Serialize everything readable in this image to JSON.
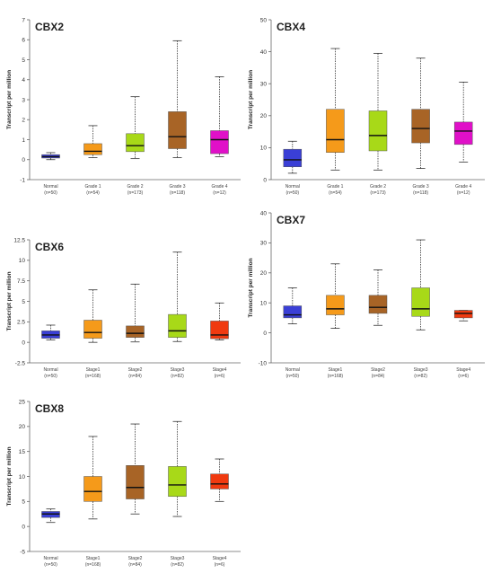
{
  "chart_data": [
    {
      "type": "box",
      "title": "CBX2",
      "ylabel": "Transcript per million",
      "ylim": [
        -1,
        7
      ],
      "yticks": [
        -1,
        0,
        1,
        2,
        3,
        4,
        5,
        6,
        7
      ],
      "categories": [
        {
          "name": "Normal",
          "n": "(n=50)",
          "color": "#3a3fd6",
          "min": 0.0,
          "q1": 0.08,
          "median": 0.15,
          "q3": 0.25,
          "max": 0.35
        },
        {
          "name": "Grade 1",
          "n": "(n=54)",
          "color": "#f59a1a",
          "min": 0.1,
          "q1": 0.25,
          "median": 0.42,
          "q3": 0.8,
          "max": 1.7
        },
        {
          "name": "Grade 2",
          "n": "(n=173)",
          "color": "#a8d918",
          "min": 0.05,
          "q1": 0.4,
          "median": 0.7,
          "q3": 1.3,
          "max": 3.15
        },
        {
          "name": "Grade 3",
          "n": "(n=118)",
          "color": "#a86426",
          "min": 0.1,
          "q1": 0.55,
          "median": 1.15,
          "q3": 2.4,
          "max": 5.95
        },
        {
          "name": "Grade 4",
          "n": "(n=12)",
          "color": "#e010c8",
          "min": 0.15,
          "q1": 0.3,
          "median": 1.0,
          "q3": 1.45,
          "max": 4.15
        }
      ]
    },
    {
      "type": "box",
      "title": "CBX4",
      "ylabel": "Transcript per million",
      "ylim": [
        0,
        50
      ],
      "yticks": [
        0,
        10,
        20,
        30,
        40,
        50
      ],
      "categories": [
        {
          "name": "Normal",
          "n": "(n=50)",
          "color": "#3a3fd6",
          "min": 2.0,
          "q1": 4.0,
          "median": 6.2,
          "q3": 9.5,
          "max": 12.0
        },
        {
          "name": "Grade 1",
          "n": "(n=54)",
          "color": "#f59a1a",
          "min": 3.0,
          "q1": 8.5,
          "median": 12.5,
          "q3": 22.0,
          "max": 41.0
        },
        {
          "name": "Grade 2",
          "n": "(n=173)",
          "color": "#a8d918",
          "min": 3.0,
          "q1": 9.0,
          "median": 13.8,
          "q3": 21.5,
          "max": 39.5
        },
        {
          "name": "Grade 3",
          "n": "(n=118)",
          "color": "#a86426",
          "min": 3.5,
          "q1": 11.5,
          "median": 16.0,
          "q3": 22.0,
          "max": 38.0
        },
        {
          "name": "Grade 4",
          "n": "(n=12)",
          "color": "#e010c8",
          "min": 5.5,
          "q1": 11.0,
          "median": 15.2,
          "q3": 18.0,
          "max": 30.5
        }
      ]
    },
    {
      "type": "box",
      "title": "CBX6",
      "ylabel": "Transcript per million",
      "ylim": [
        -2.5,
        12.5
      ],
      "yticks": [
        -2.5,
        0,
        2.5,
        5,
        7.5,
        10,
        12.5
      ],
      "categories": [
        {
          "name": "Normal",
          "n": "(n=50)",
          "color": "#3a3fd6",
          "min": 0.3,
          "q1": 0.5,
          "median": 0.9,
          "q3": 1.4,
          "max": 2.1
        },
        {
          "name": "Stage1",
          "n": "(n=168)",
          "color": "#f59a1a",
          "min": 0.0,
          "q1": 0.5,
          "median": 1.2,
          "q3": 2.7,
          "max": 6.4
        },
        {
          "name": "Stage2",
          "n": "(n=84)",
          "color": "#a86426",
          "min": 0.05,
          "q1": 0.6,
          "median": 1.1,
          "q3": 2.0,
          "max": 7.1
        },
        {
          "name": "Stage3",
          "n": "(n=82)",
          "color": "#a8d918",
          "min": 0.1,
          "q1": 0.6,
          "median": 1.4,
          "q3": 3.4,
          "max": 11.0
        },
        {
          "name": "Stage4",
          "n": "(n=6)",
          "color": "#f03a10",
          "min": 0.3,
          "q1": 0.45,
          "median": 0.9,
          "q3": 2.6,
          "max": 4.8
        }
      ]
    },
    {
      "type": "box",
      "title": "CBX7",
      "ylabel": "Transcript per million",
      "ylim": [
        -10,
        40
      ],
      "yticks": [
        -10,
        0,
        10,
        20,
        30,
        40
      ],
      "categories": [
        {
          "name": "Normal",
          "n": "(n=50)",
          "color": "#3a3fd6",
          "min": 3.0,
          "q1": 5.0,
          "median": 6.0,
          "q3": 9.0,
          "max": 15.0
        },
        {
          "name": "Stage1",
          "n": "(n=168)",
          "color": "#f59a1a",
          "min": 1.5,
          "q1": 6.0,
          "median": 8.0,
          "q3": 12.5,
          "max": 23.0
        },
        {
          "name": "Stage2",
          "n": "(n=84)",
          "color": "#a86426",
          "min": 2.5,
          "q1": 6.5,
          "median": 8.5,
          "q3": 12.5,
          "max": 21.0
        },
        {
          "name": "Stage3",
          "n": "(n=82)",
          "color": "#a8d918",
          "min": 1.0,
          "q1": 5.5,
          "median": 8.0,
          "q3": 15.0,
          "max": 31.0
        },
        {
          "name": "Stage4",
          "n": "(n=6)",
          "color": "#f03a10",
          "min": 4.0,
          "q1": 5.0,
          "median": 6.5,
          "q3": 7.5,
          "max": 7.5
        }
      ]
    },
    {
      "type": "box",
      "title": "CBX8",
      "ylabel": "Transcript per million",
      "ylim": [
        -5,
        25
      ],
      "yticks": [
        -5,
        0,
        5,
        10,
        15,
        20,
        25
      ],
      "categories": [
        {
          "name": "Normal",
          "n": "(n=50)",
          "color": "#3a3fd6",
          "min": 0.8,
          "q1": 1.8,
          "median": 2.5,
          "q3": 3.0,
          "max": 3.5
        },
        {
          "name": "Stage1",
          "n": "(n=168)",
          "color": "#f59a1a",
          "min": 1.5,
          "q1": 5.0,
          "median": 7.0,
          "q3": 10.0,
          "max": 18.0
        },
        {
          "name": "Stage2",
          "n": "(n=84)",
          "color": "#a86426",
          "min": 2.5,
          "q1": 5.5,
          "median": 7.8,
          "q3": 12.2,
          "max": 20.5
        },
        {
          "name": "Stage3",
          "n": "(n=82)",
          "color": "#a8d918",
          "min": 2.0,
          "q1": 6.0,
          "median": 8.3,
          "q3": 12.0,
          "max": 21.0
        },
        {
          "name": "Stage4",
          "n": "(n=6)",
          "color": "#f03a10",
          "min": 5.0,
          "q1": 7.5,
          "median": 8.5,
          "q3": 10.5,
          "max": 13.5
        }
      ]
    }
  ]
}
